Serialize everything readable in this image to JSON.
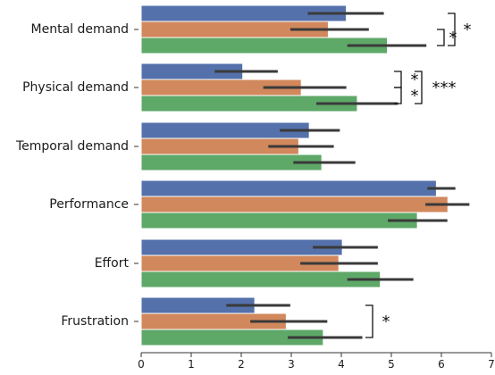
{
  "chart_data": {
    "type": "bar",
    "orientation": "horizontal",
    "categories": [
      "Mental demand",
      "Physical demand",
      "Temporal demand",
      "Performance",
      "Effort",
      "Frustration"
    ],
    "series": [
      {
        "values": [
          4.1,
          2.03,
          3.36,
          5.9,
          4.02,
          2.27
        ],
        "ci_low": [
          3.33,
          1.47,
          2.77,
          5.72,
          3.43,
          1.7
        ],
        "ci_high": [
          4.85,
          2.73,
          3.97,
          6.28,
          4.73,
          2.98
        ]
      },
      {
        "values": [
          3.74,
          3.2,
          3.15,
          6.13,
          3.95,
          2.9
        ],
        "ci_low": [
          2.98,
          2.44,
          2.54,
          5.68,
          3.18,
          2.18
        ],
        "ci_high": [
          4.55,
          4.1,
          3.85,
          6.56,
          4.73,
          3.72
        ]
      },
      {
        "values": [
          4.92,
          4.32,
          3.61,
          5.52,
          4.78,
          3.64
        ],
        "ci_low": [
          4.12,
          3.5,
          3.04,
          4.93,
          4.12,
          2.93
        ],
        "ci_high": [
          5.7,
          5.13,
          4.28,
          6.12,
          5.44,
          4.42
        ]
      }
    ],
    "series_colors": [
      "#5471ab",
      "#d1885c",
      "#5ea868"
    ],
    "xlim": [
      0,
      7
    ],
    "xticks": [
      0,
      1,
      2,
      3,
      4,
      5,
      6,
      7
    ],
    "xtick_labels": [
      "0",
      "1",
      "2",
      "3",
      "4",
      "5",
      "6",
      "7"
    ],
    "error_bar_color": "#3a3a3a",
    "significance": [
      {
        "category": "Mental demand",
        "series_pair": [
          1,
          2
        ],
        "label": "*"
      },
      {
        "category": "Mental demand",
        "series_pair": [
          0,
          2
        ],
        "label": "*"
      },
      {
        "category": "Physical demand",
        "series_pair": [
          0,
          1
        ],
        "label": "*"
      },
      {
        "category": "Physical demand",
        "series_pair": [
          1,
          2
        ],
        "label": "*"
      },
      {
        "category": "Physical demand",
        "series_pair": [
          0,
          2
        ],
        "label": "***"
      },
      {
        "category": "Frustration",
        "series_pair": [
          0,
          2
        ],
        "label": "*"
      }
    ]
  }
}
